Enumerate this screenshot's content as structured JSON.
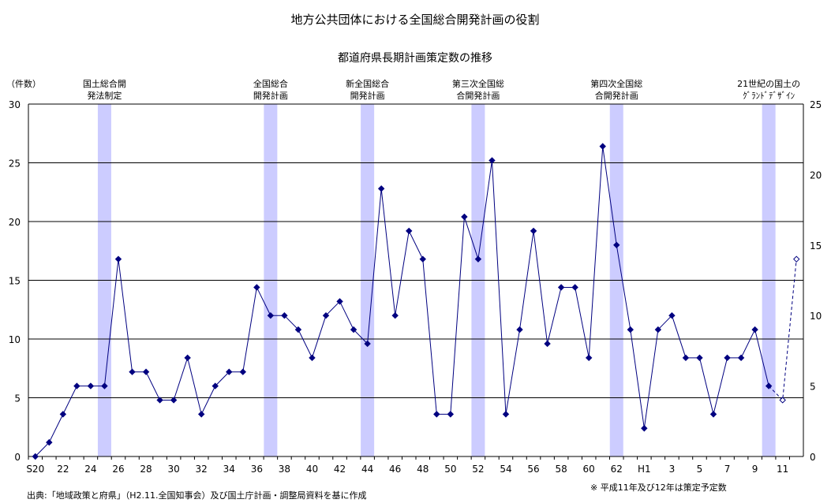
{
  "chart_data": {
    "type": "line",
    "title": "地方公共団体における全国総合開発計画の役割",
    "subtitle": "都道府県長期計画策定数の推移",
    "ylabel": "（件数）",
    "ylim": [
      0,
      30
    ],
    "y2lim": [
      0,
      25
    ],
    "yticks": [
      0,
      5,
      10,
      15,
      20,
      25,
      30
    ],
    "y2ticks": [
      0,
      5,
      10,
      15,
      20,
      25
    ],
    "grid": true,
    "x": [
      "S20",
      "21",
      "22",
      "23",
      "24",
      "25",
      "26",
      "27",
      "28",
      "29",
      "30",
      "31",
      "32",
      "33",
      "34",
      "35",
      "36",
      "37",
      "38",
      "39",
      "40",
      "41",
      "42",
      "43",
      "44",
      "45",
      "46",
      "47",
      "48",
      "49",
      "50",
      "51",
      "52",
      "53",
      "54",
      "55",
      "56",
      "57",
      "58",
      "59",
      "60",
      "61",
      "62",
      "63",
      "H1",
      "2",
      "3",
      "4",
      "5",
      "6",
      "7",
      "8",
      "9",
      "10",
      "11",
      "12"
    ],
    "xtick_labels": [
      "S20",
      "",
      "22",
      "",
      "24",
      "",
      "26",
      "",
      "28",
      "",
      "30",
      "",
      "32",
      "",
      "34",
      "",
      "36",
      "",
      "38",
      "",
      "40",
      "",
      "42",
      "",
      "44",
      "",
      "46",
      "",
      "48",
      "",
      "50",
      "",
      "52",
      "",
      "54",
      "",
      "56",
      "",
      "58",
      "",
      "60",
      "",
      "62",
      "",
      "H1",
      "",
      "3",
      "",
      "5",
      "",
      "7",
      "",
      "9",
      "",
      "11",
      ""
    ],
    "series": [
      {
        "values": [
          0,
          1,
          3,
          5,
          5,
          5,
          14,
          6,
          6,
          4,
          4,
          7,
          3,
          5,
          6,
          6,
          12,
          10,
          10,
          9,
          7,
          10,
          11,
          9,
          8,
          19,
          10,
          16,
          14,
          3,
          3,
          17,
          14,
          21,
          3,
          9,
          16,
          8,
          12,
          12,
          7,
          22,
          15,
          9,
          2,
          9,
          10,
          7,
          7,
          3,
          7,
          7,
          9,
          5,
          null,
          null
        ],
        "color": "#000080",
        "axis": "right"
      },
      {
        "values": [
          null,
          null,
          null,
          null,
          null,
          null,
          null,
          null,
          null,
          null,
          null,
          null,
          null,
          null,
          null,
          null,
          null,
          null,
          null,
          null,
          null,
          null,
          null,
          null,
          null,
          null,
          null,
          null,
          null,
          null,
          null,
          null,
          null,
          null,
          null,
          null,
          null,
          null,
          null,
          null,
          null,
          null,
          null,
          null,
          null,
          null,
          null,
          null,
          null,
          null,
          null,
          null,
          null,
          5,
          4,
          14
        ],
        "color": "#000080",
        "style": "dashed",
        "marker": "open-diamond",
        "axis": "right"
      }
    ],
    "plan_bands": [
      {
        "year": "25",
        "label": [
          "国土総合開",
          "発法制定"
        ]
      },
      {
        "year": "37",
        "label": [
          "全国総合",
          "開発計画"
        ]
      },
      {
        "year": "44",
        "label": [
          "新全国総合",
          "開発計画"
        ]
      },
      {
        "year": "52",
        "label": [
          "第三次全国総",
          "合開発計画"
        ]
      },
      {
        "year": "62",
        "label": [
          "第四次全国総",
          "合開発計画"
        ]
      },
      {
        "year": "10",
        "label": [
          "21世紀の国土の",
          "ｸﾞﾗﾝﾄﾞﾃﾞｻﾞｲﾝ"
        ]
      }
    ],
    "band_color": "#ccccff",
    "line_color": "#000080"
  },
  "source": "出典:「地域政策と府県」（H2.11.全国知事会）及び国土庁計画・調整局資料を基に作成",
  "note": "※ 平成11年及び12年は策定予定数"
}
